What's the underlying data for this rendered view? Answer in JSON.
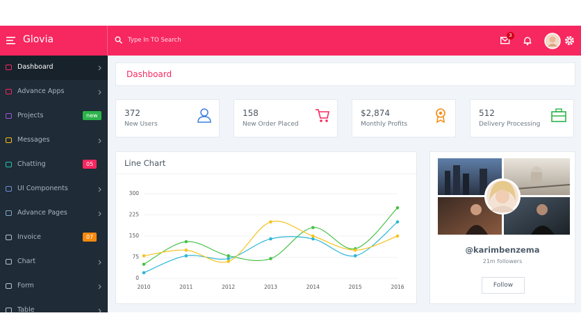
{
  "header": {
    "brand": "Glovia",
    "search_placeholder": "Type In TO Search",
    "mail_badge": "3"
  },
  "sidebar": {
    "items": [
      {
        "label": "Dashboard"
      },
      {
        "label": "Advance Apps"
      },
      {
        "label": "Projects",
        "badge": "new"
      },
      {
        "label": "Messages"
      },
      {
        "label": "Chatting",
        "badge": "05"
      },
      {
        "label": "UI Components"
      },
      {
        "label": "Advance Pages"
      },
      {
        "label": "Invoice",
        "badge": "07"
      },
      {
        "label": "Chart"
      },
      {
        "label": "Form"
      },
      {
        "label": "Table"
      }
    ]
  },
  "page_title": "Dashboard",
  "stats": [
    {
      "value": "372",
      "label": "New Users"
    },
    {
      "value": "158",
      "label": "New Order Placed"
    },
    {
      "value": "$2,874",
      "label": "Monthly Profits"
    },
    {
      "value": "512",
      "label": "Delivery Processing"
    }
  ],
  "chart_data": {
    "type": "line",
    "title": "Line Chart",
    "x": [
      2010,
      2011,
      2012,
      2013,
      2014,
      2015,
      2016
    ],
    "series": [
      {
        "color": "#48c147",
        "values": [
          50,
          130,
          80,
          70,
          180,
          105,
          250
        ]
      },
      {
        "color": "#2bb6d6",
        "values": [
          20,
          80,
          70,
          140,
          140,
          80,
          200
        ]
      },
      {
        "color": "#f5c31f",
        "values": [
          80,
          100,
          60,
          200,
          150,
          100,
          150
        ]
      }
    ],
    "xlim": [
      2010,
      2016
    ],
    "xticks": [
      2010,
      2011,
      2012,
      2013,
      2014,
      2015,
      2016
    ],
    "ylim": [
      0,
      300
    ],
    "yticks": [
      0,
      75,
      150,
      225,
      300
    ],
    "grid": true
  },
  "profile": {
    "handle": "@karimbenzema",
    "followers": "21m followers",
    "button": "Follow"
  }
}
